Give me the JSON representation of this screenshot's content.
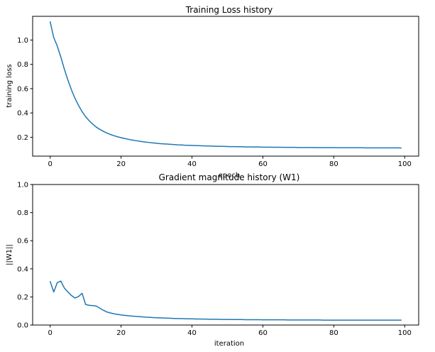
{
  "chart_data": [
    {
      "type": "line",
      "title": "Training Loss history",
      "xlabel": "epoch",
      "ylabel": "training loss",
      "xlim": [
        -4.95,
        103.95
      ],
      "ylim": [
        0.045,
        1.195
      ],
      "xticks": [
        0,
        20,
        40,
        60,
        80,
        100
      ],
      "xtick_labels": [
        "0",
        "20",
        "40",
        "60",
        "80",
        "100"
      ],
      "yticks": [
        0.2,
        0.4,
        0.6,
        0.8,
        1.0
      ],
      "ytick_labels": [
        "0.2",
        "0.4",
        "0.6",
        "0.8",
        "1.0"
      ],
      "grid": false,
      "color": "#1f77b4",
      "series": [
        {
          "x": [
            0,
            1,
            2,
            3,
            4,
            5,
            6,
            7,
            8,
            9,
            10,
            11,
            12,
            13,
            14,
            15,
            16,
            17,
            18,
            19,
            20,
            21,
            22,
            23,
            24,
            25,
            26,
            27,
            28,
            29,
            30,
            31,
            32,
            33,
            34,
            35,
            36,
            37,
            38,
            39,
            40,
            41,
            42,
            43,
            44,
            45,
            46,
            47,
            48,
            49,
            50,
            51,
            52,
            53,
            54,
            55,
            56,
            57,
            58,
            59,
            60,
            61,
            62,
            63,
            64,
            65,
            66,
            67,
            68,
            69,
            70,
            71,
            72,
            73,
            74,
            75,
            76,
            77,
            78,
            79,
            80,
            81,
            82,
            83,
            84,
            85,
            86,
            87,
            88,
            89,
            90,
            91,
            92,
            93,
            94,
            95,
            96,
            97,
            98,
            99
          ],
          "y": [
            1.15,
            1.02,
            0.95,
            0.86,
            0.76,
            0.67,
            0.59,
            0.52,
            0.462,
            0.411,
            0.369,
            0.336,
            0.308,
            0.284,
            0.265,
            0.249,
            0.235,
            0.223,
            0.213,
            0.204,
            0.197,
            0.19,
            0.184,
            0.178,
            0.173,
            0.168,
            0.164,
            0.16,
            0.157,
            0.154,
            0.151,
            0.148,
            0.146,
            0.144,
            0.142,
            0.14,
            0.138,
            0.137,
            0.135,
            0.134,
            0.133,
            0.132,
            0.131,
            0.13,
            0.129,
            0.128,
            0.127,
            0.126,
            0.125,
            0.125,
            0.124,
            0.123,
            0.123,
            0.122,
            0.122,
            0.121,
            0.121,
            0.12,
            0.12,
            0.12,
            0.119,
            0.119,
            0.119,
            0.118,
            0.118,
            0.118,
            0.117,
            0.117,
            0.117,
            0.117,
            0.116,
            0.116,
            0.116,
            0.116,
            0.116,
            0.115,
            0.115,
            0.115,
            0.115,
            0.115,
            0.115,
            0.114,
            0.114,
            0.114,
            0.114,
            0.114,
            0.114,
            0.114,
            0.114,
            0.113,
            0.113,
            0.113,
            0.113,
            0.113,
            0.113,
            0.113,
            0.113,
            0.113,
            0.113,
            0.112
          ]
        }
      ]
    },
    {
      "type": "line",
      "title": "Gradient magnitude history (W1)",
      "xlabel": "iteration",
      "ylabel": "||W1||",
      "xlim": [
        -4.95,
        103.95
      ],
      "ylim": [
        0,
        1
      ],
      "xticks": [
        0,
        20,
        40,
        60,
        80,
        100
      ],
      "xtick_labels": [
        "0",
        "20",
        "40",
        "60",
        "80",
        "100"
      ],
      "yticks": [
        0.0,
        0.2,
        0.4,
        0.6,
        0.8,
        1.0
      ],
      "ytick_labels": [
        "0.0",
        "0.2",
        "0.4",
        "0.6",
        "0.8",
        "1.0"
      ],
      "grid": false,
      "color": "#1f77b4",
      "series": [
        {
          "x": [
            0,
            1,
            2,
            3,
            4,
            5,
            6,
            7,
            8,
            9,
            10,
            11,
            12,
            13,
            14,
            15,
            16,
            17,
            18,
            19,
            20,
            21,
            22,
            23,
            24,
            25,
            26,
            27,
            28,
            29,
            30,
            31,
            32,
            33,
            34,
            35,
            36,
            37,
            38,
            39,
            40,
            41,
            42,
            43,
            44,
            45,
            46,
            47,
            48,
            49,
            50,
            51,
            52,
            53,
            54,
            55,
            56,
            57,
            58,
            59,
            60,
            61,
            62,
            63,
            64,
            65,
            66,
            67,
            68,
            69,
            70,
            71,
            72,
            73,
            74,
            75,
            76,
            77,
            78,
            79,
            80,
            81,
            82,
            83,
            84,
            85,
            86,
            87,
            88,
            89,
            90,
            91,
            92,
            93,
            94,
            95,
            96,
            97,
            98,
            99
          ],
          "y": [
            0.31,
            0.235,
            0.302,
            0.313,
            0.263,
            0.235,
            0.21,
            0.192,
            0.203,
            0.226,
            0.146,
            0.14,
            0.138,
            0.135,
            0.12,
            0.105,
            0.093,
            0.086,
            0.08,
            0.076,
            0.072,
            0.069,
            0.066,
            0.064,
            0.062,
            0.06,
            0.058,
            0.056,
            0.055,
            0.053,
            0.052,
            0.051,
            0.05,
            0.049,
            0.048,
            0.047,
            0.046,
            0.046,
            0.045,
            0.044,
            0.044,
            0.043,
            0.043,
            0.042,
            0.042,
            0.041,
            0.041,
            0.041,
            0.04,
            0.04,
            0.04,
            0.039,
            0.039,
            0.039,
            0.039,
            0.038,
            0.038,
            0.038,
            0.038,
            0.038,
            0.037,
            0.037,
            0.037,
            0.037,
            0.037,
            0.037,
            0.037,
            0.036,
            0.036,
            0.036,
            0.036,
            0.036,
            0.036,
            0.036,
            0.036,
            0.036,
            0.036,
            0.035,
            0.035,
            0.035,
            0.035,
            0.035,
            0.035,
            0.035,
            0.035,
            0.035,
            0.035,
            0.035,
            0.035,
            0.035,
            0.035,
            0.035,
            0.035,
            0.035,
            0.035,
            0.035,
            0.035,
            0.035,
            0.035,
            0.035
          ]
        }
      ]
    }
  ]
}
